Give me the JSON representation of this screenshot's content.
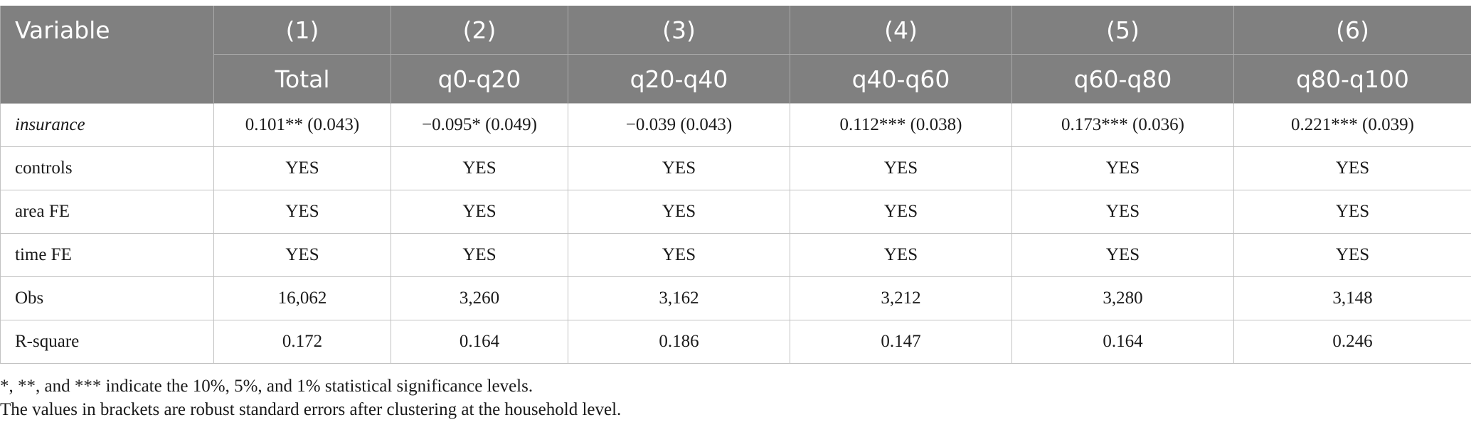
{
  "table": {
    "header_label": "Variable",
    "column_numbers": [
      "(1)",
      "(2)",
      "(3)",
      "(4)",
      "(5)",
      "(6)"
    ],
    "column_names": [
      "Total",
      "q0-q20",
      "q20-q40",
      "q40-q60",
      "q60-q80",
      "q80-q100"
    ],
    "rows": [
      {
        "label": "insurance",
        "values": [
          "0.101** (0.043)",
          "−0.095* (0.049)",
          "−0.039 (0.043)",
          "0.112*** (0.038)",
          "0.173*** (0.036)",
          "0.221*** (0.039)"
        ]
      },
      {
        "label": "controls",
        "values": [
          "YES",
          "YES",
          "YES",
          "YES",
          "YES",
          "YES"
        ]
      },
      {
        "label": "area FE",
        "values": [
          "YES",
          "YES",
          "YES",
          "YES",
          "YES",
          "YES"
        ]
      },
      {
        "label": "time FE",
        "values": [
          "YES",
          "YES",
          "YES",
          "YES",
          "YES",
          "YES"
        ]
      },
      {
        "label": "Obs",
        "values": [
          "16,062",
          "3,260",
          "3,162",
          "3,212",
          "3,280",
          "3,148"
        ]
      },
      {
        "label": "R-square",
        "values": [
          "0.172",
          "0.164",
          "0.186",
          "0.147",
          "0.164",
          "0.246"
        ]
      }
    ]
  },
  "notes": [
    "*, **, and *** indicate the 10%, 5%, and 1% statistical significance levels.",
    "The values in brackets are robust standard errors after clustering at the household level."
  ]
}
